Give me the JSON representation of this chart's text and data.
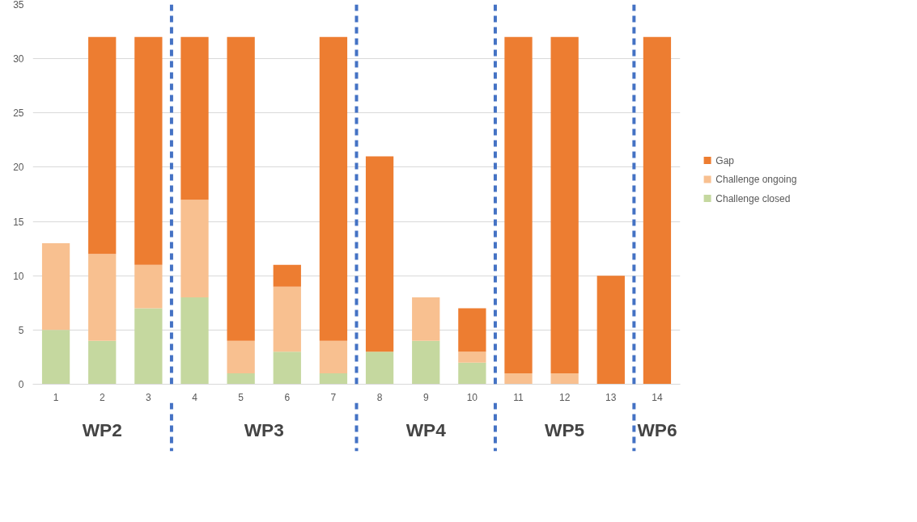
{
  "chart_data": {
    "type": "bar",
    "stacked": true,
    "x": [
      1,
      2,
      3,
      4,
      5,
      6,
      7,
      8,
      9,
      10,
      11,
      12,
      13,
      14
    ],
    "xlim": [
      0.5,
      14.5
    ],
    "xticks": [
      1,
      2,
      3,
      4,
      5,
      6,
      7,
      8,
      9,
      10,
      11,
      12,
      13,
      14
    ],
    "ylim": [
      0,
      35
    ],
    "yticks": [
      0,
      5,
      10,
      15,
      20,
      25,
      30,
      35
    ],
    "series": [
      {
        "name": "Challenge closed",
        "color": "#c5d89f",
        "values": [
          5,
          4,
          7,
          8,
          1,
          3,
          1,
          3,
          4,
          2,
          0,
          0,
          0,
          0
        ]
      },
      {
        "name": "Challenge ongoing",
        "color": "#f8c090",
        "values": [
          8,
          8,
          4,
          9,
          3,
          6,
          3,
          0,
          4,
          1,
          1,
          1,
          0,
          0
        ]
      },
      {
        "name": "Gap",
        "color": "#ed7d31",
        "values": [
          0,
          20,
          21,
          15,
          28,
          2,
          28,
          18,
          0,
          4,
          31,
          31,
          10,
          32
        ]
      }
    ],
    "ref_lines": [
      {
        "axis": "x",
        "value": 3.5,
        "color": "#4472c4",
        "line_style": "dashed"
      },
      {
        "axis": "x",
        "value": 7.5,
        "color": "#4472c4",
        "line_style": "dashed"
      },
      {
        "axis": "x",
        "value": 10.5,
        "color": "#4472c4",
        "line_style": "dashed"
      },
      {
        "axis": "x",
        "value": 13.5,
        "color": "#4472c4",
        "line_style": "dashed"
      }
    ],
    "annotations": [
      "WP2",
      "WP3",
      "WP4",
      "WP5",
      "WP6"
    ],
    "grid": "y",
    "legend": "right"
  }
}
